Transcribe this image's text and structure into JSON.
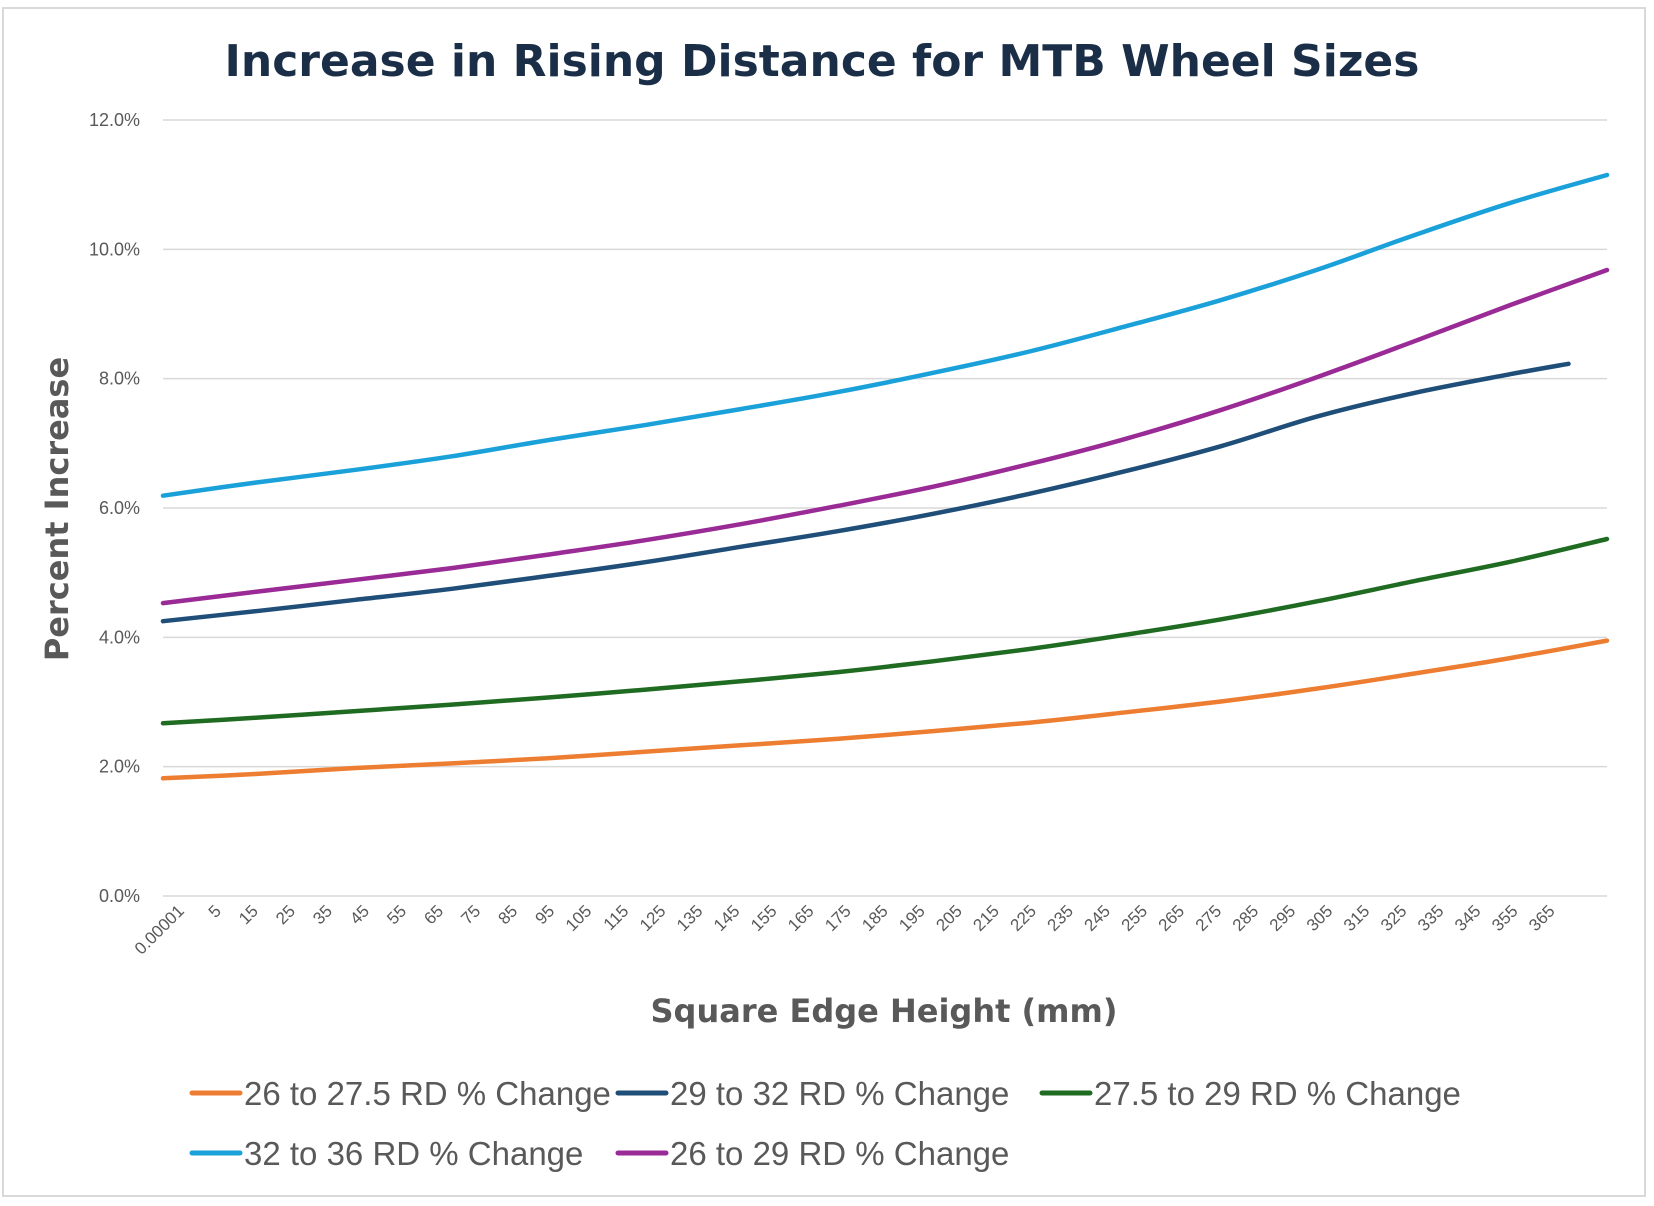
{
  "chart_data": {
    "type": "line",
    "title": "Increase in Rising Distance for MTB Wheel Sizes",
    "xlabel": "Square Edge Height (mm)",
    "ylabel": "Percent Increase",
    "ylim": [
      0,
      12
    ],
    "y_tick_values": [
      0,
      2,
      4,
      6,
      8,
      10,
      12
    ],
    "y_tick_labels": [
      "0.0%",
      "2.0%",
      "4.0%",
      "6.0%",
      "8.0%",
      "10.0%",
      "12.0%"
    ],
    "x_tick_labels": [
      "0.00001",
      "5",
      "15",
      "25",
      "35",
      "45",
      "55",
      "65",
      "75",
      "85",
      "95",
      "105",
      "115",
      "125",
      "135",
      "145",
      "155",
      "165",
      "175",
      "185",
      "195",
      "205",
      "215",
      "225",
      "235",
      "245",
      "255",
      "265",
      "275",
      "285",
      "295",
      "305",
      "315",
      "325",
      "335",
      "345",
      "355",
      "365"
    ],
    "grid": true,
    "legend_position": "bottom",
    "series": [
      {
        "name": "26 to 27.5 RD % Change",
        "color": "#ed7d31",
        "x": [
          0,
          25,
          50,
          75,
          100,
          125,
          150,
          175,
          200,
          225,
          250,
          275,
          300,
          325,
          350,
          375
        ],
        "y": [
          1.82,
          1.89,
          1.98,
          2.05,
          2.13,
          2.23,
          2.33,
          2.43,
          2.55,
          2.68,
          2.84,
          3.01,
          3.21,
          3.44,
          3.68,
          3.95
        ]
      },
      {
        "name": "29 to 32 RD % Change",
        "color": "#1f4e79",
        "x": [
          0,
          25,
          50,
          75,
          100,
          125,
          150,
          175,
          200,
          225,
          250,
          275,
          300,
          325,
          350,
          365
        ],
        "y": [
          4.25,
          4.41,
          4.58,
          4.75,
          4.95,
          5.16,
          5.4,
          5.64,
          5.91,
          6.22,
          6.57,
          6.96,
          7.42,
          7.78,
          8.07,
          8.23
        ]
      },
      {
        "name": "27.5 to 29 RD % Change",
        "color": "#1e6b21",
        "x": [
          0,
          25,
          50,
          75,
          100,
          125,
          150,
          175,
          200,
          225,
          250,
          275,
          300,
          325,
          350,
          375
        ],
        "y": [
          2.67,
          2.76,
          2.86,
          2.96,
          3.07,
          3.19,
          3.32,
          3.46,
          3.63,
          3.82,
          4.04,
          4.28,
          4.56,
          4.87,
          5.17,
          5.52
        ]
      },
      {
        "name": "32 to 36 RD % Change",
        "color": "#1ba1d9",
        "x": [
          0,
          25,
          50,
          75,
          100,
          125,
          150,
          175,
          200,
          225,
          250,
          275,
          300,
          325,
          350,
          375
        ],
        "y": [
          6.19,
          6.4,
          6.59,
          6.8,
          7.05,
          7.28,
          7.53,
          7.79,
          8.09,
          8.42,
          8.81,
          9.22,
          9.69,
          10.22,
          10.72,
          11.15
        ]
      },
      {
        "name": "26 to 29 RD % Change",
        "color": "#9a2a95",
        "x": [
          0,
          25,
          50,
          75,
          100,
          125,
          150,
          175,
          200,
          225,
          250,
          275,
          300,
          325,
          350,
          375
        ],
        "y": [
          4.53,
          4.71,
          4.89,
          5.07,
          5.28,
          5.5,
          5.75,
          6.03,
          6.33,
          6.68,
          7.07,
          7.52,
          8.03,
          8.58,
          9.14,
          9.68
        ]
      }
    ]
  }
}
